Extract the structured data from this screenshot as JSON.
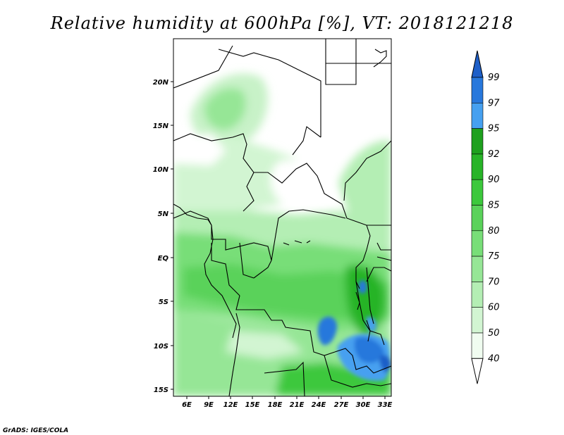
{
  "title": "Relative humidity at 600hPa [%], VT: 2018121218",
  "credit": "GrADS: IGES/COLA",
  "map": {
    "lon_ticks": [
      "6E",
      "9E",
      "12E",
      "15E",
      "18E",
      "21E",
      "24E",
      "27E",
      "30E",
      "33E"
    ],
    "lat_ticks": [
      "20N",
      "15N",
      "10N",
      "5N",
      "EQ",
      "5S",
      "10S",
      "15S"
    ]
  },
  "colorbar": {
    "labels": [
      "40",
      "50",
      "60",
      "70",
      "75",
      "80",
      "85",
      "90",
      "92",
      "95",
      "97",
      "99"
    ],
    "colors": [
      "#f0fcf0",
      "#d2f5d2",
      "#b4eeb4",
      "#96e696",
      "#78de78",
      "#5ad25a",
      "#3cc83c",
      "#28b428",
      "#1ea01e",
      "#46a0f0",
      "#2878dc",
      "#1e5fc8"
    ],
    "under_color": "#ffffff",
    "over_color": "#1e5fc8"
  }
}
